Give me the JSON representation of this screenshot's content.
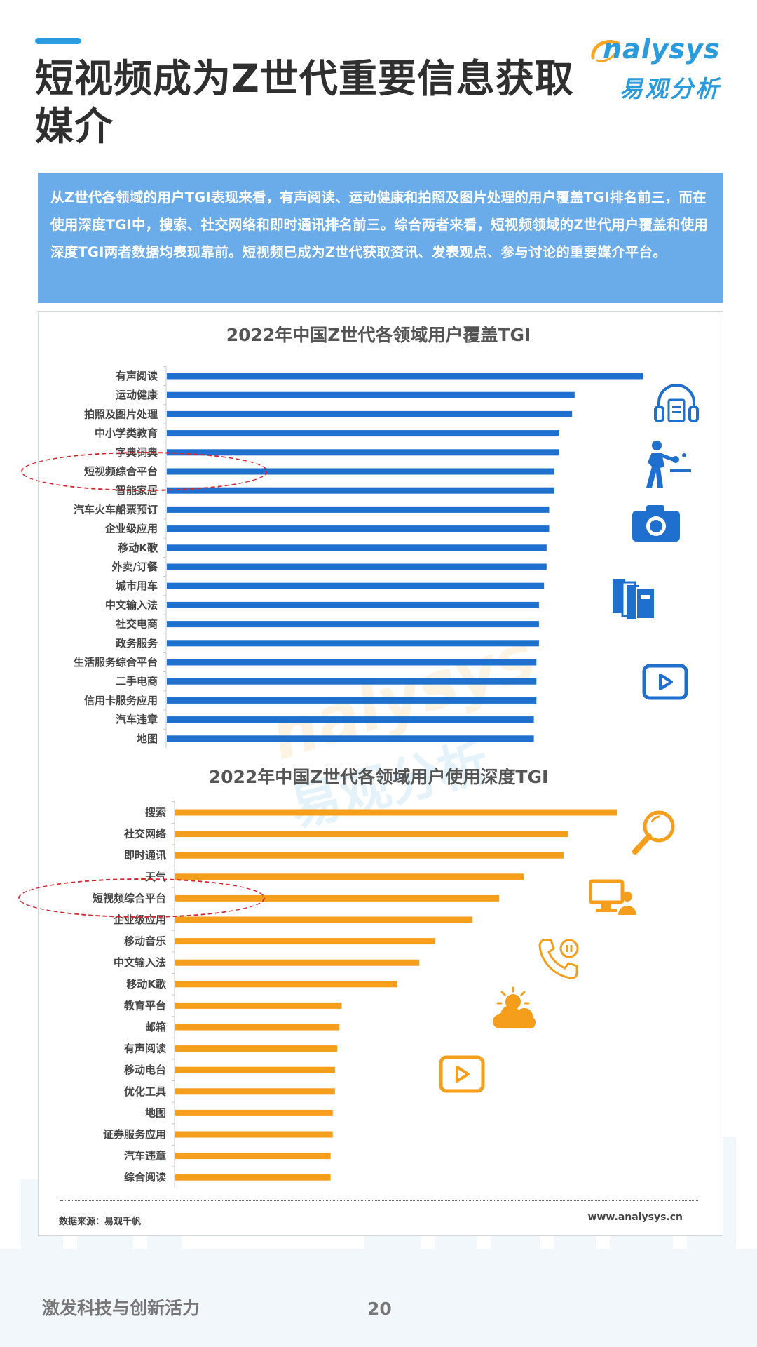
{
  "header": {
    "title": "短视频成为Z世代重要信息获取媒介",
    "logo_text": "nalysys",
    "logo_cn": "易观分析"
  },
  "summary": "从Z世代各领域的用户TGI表现来看，有声阅读、运动健康和拍照及图片处理的用户覆盖TGI排名前三，而在使用深度TGI中，搜索、社交网络和即时通讯排名前三。综合两者来看，短视频领域的Z世代用户覆盖和使用深度TGI两者数据均表现靠前。短视频已成为Z世代获取资讯、发表观点、参与讨论的重要媒介平台。",
  "watermark": {
    "en": "nalysys",
    "cn": "易观分析"
  },
  "chart_data": [
    {
      "type": "bar",
      "orientation": "horizontal",
      "title": "2022年中国Z世代各领域用户覆盖TGI",
      "color": "#1f6fcf",
      "categories": [
        "有声阅读",
        "运动健康",
        "拍照及图片处理",
        "中小学类教育",
        "字典词典",
        "短视频综合平台",
        "智能家居",
        "汽车火车船票预订",
        "企业级应用",
        "移动K歌",
        "外卖/订餐",
        "城市用车",
        "中文输入法",
        "社交电商",
        "政务服务",
        "生活服务综合平台",
        "二手电商",
        "信用卡服务应用",
        "汽车违章",
        "地图"
      ],
      "values": [
        187,
        160,
        159,
        154,
        154,
        152,
        152,
        150,
        150,
        149,
        149,
        148,
        146,
        146,
        146,
        145,
        145,
        145,
        144,
        144
      ],
      "highlighted": "短视频综合平台",
      "grid": false
    },
    {
      "type": "bar",
      "orientation": "horizontal",
      "title": "2022年中国Z世代各领域用户使用深度TGI",
      "color": "#f59e1b",
      "categories": [
        "搜索",
        "社交网络",
        "即时通讯",
        "天气",
        "短视频综合平台",
        "企业级应用",
        "移动音乐",
        "中文输入法",
        "移动K歌",
        "教育平台",
        "邮箱",
        "有声阅读",
        "移动电台",
        "优化工具",
        "地图",
        "证券服务应用",
        "汽车违章",
        "综合阅读"
      ],
      "values": [
        199,
        177,
        175,
        157,
        146,
        134,
        117,
        110,
        100,
        75,
        74,
        73,
        72,
        72,
        71,
        71,
        70,
        70
      ],
      "highlighted": "短视频综合平台",
      "grid": false
    }
  ],
  "footer": {
    "source": "数据来源：易观千帆",
    "website": "www.analysys.cn",
    "slogan": "激发科技与创新活力",
    "page_number": "20"
  },
  "colors": {
    "accent": "#2a9bdc",
    "summary_bg": "#6aabea",
    "bar_blue": "#1f6fcf",
    "bar_orange": "#f59e1b",
    "highlight": "#d9232d"
  },
  "icons": [
    "headphones-icon",
    "table-tennis-icon",
    "camera-icon",
    "books-icon",
    "video-play-icon",
    "magnifier-icon",
    "computer-user-icon",
    "phone-icon",
    "weather-icon",
    "video-play-icon"
  ]
}
